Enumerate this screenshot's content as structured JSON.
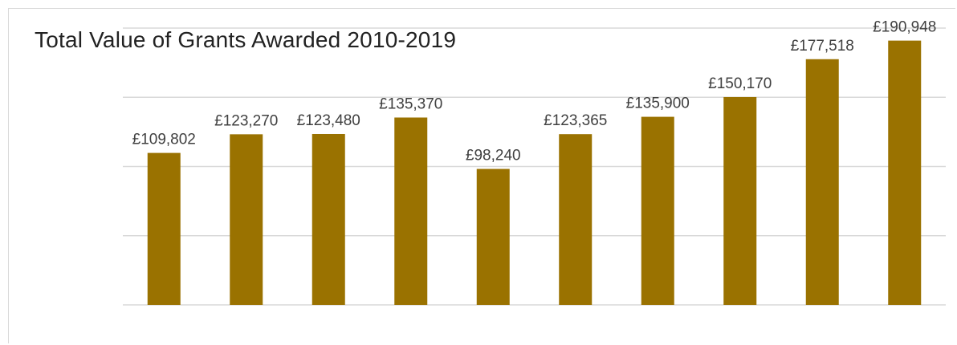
{
  "chart_data": {
    "type": "bar",
    "title": "Total Value of Grants Awarded 2010-2019",
    "xlabel": "",
    "ylabel": "",
    "categories": [
      "",
      "",
      "",
      "",
      "",
      "",
      "",
      "",
      "",
      ""
    ],
    "values": [
      109802,
      123270,
      123480,
      135370,
      98240,
      123365,
      135900,
      150170,
      177518,
      190948
    ],
    "data_labels": [
      "£109,802",
      "£123,270",
      "£123,480",
      "£135,370",
      "£98,240",
      "£123,365",
      "£135,900",
      "£150,170",
      "£177,518",
      "£190,948"
    ],
    "ylim": [
      0,
      200000
    ],
    "y_grid_step": 50000,
    "grid": true,
    "legend": "none",
    "bar_color": "#9a7200"
  }
}
